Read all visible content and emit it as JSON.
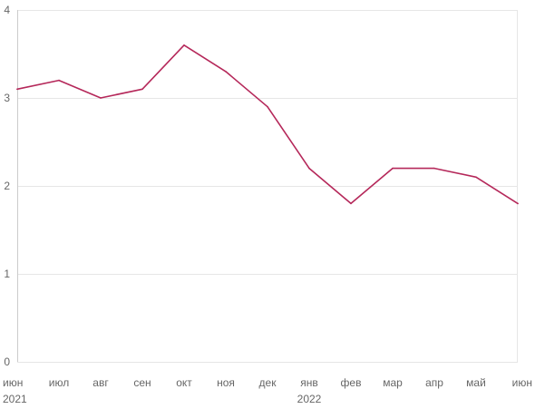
{
  "chart_data": {
    "type": "line",
    "categories": [
      "июн",
      "июл",
      "авг",
      "сен",
      "окт",
      "ноя",
      "дек",
      "янв",
      "фев",
      "мар",
      "апр",
      "май",
      "июн"
    ],
    "year_labels": [
      {
        "index": 0,
        "label": "2021"
      },
      {
        "index": 7,
        "label": "2022"
      }
    ],
    "series": [
      {
        "values": [
          3.1,
          3.2,
          3.0,
          3.1,
          3.6,
          3.3,
          2.9,
          2.2,
          1.8,
          2.2,
          2.2,
          2.1,
          1.8
        ],
        "color": "#b5285a"
      }
    ],
    "y_ticks": [
      0,
      1,
      2,
      3,
      4
    ],
    "ylim": [
      0,
      4
    ],
    "grid": true,
    "title": "",
    "xlabel": "",
    "ylabel": ""
  }
}
